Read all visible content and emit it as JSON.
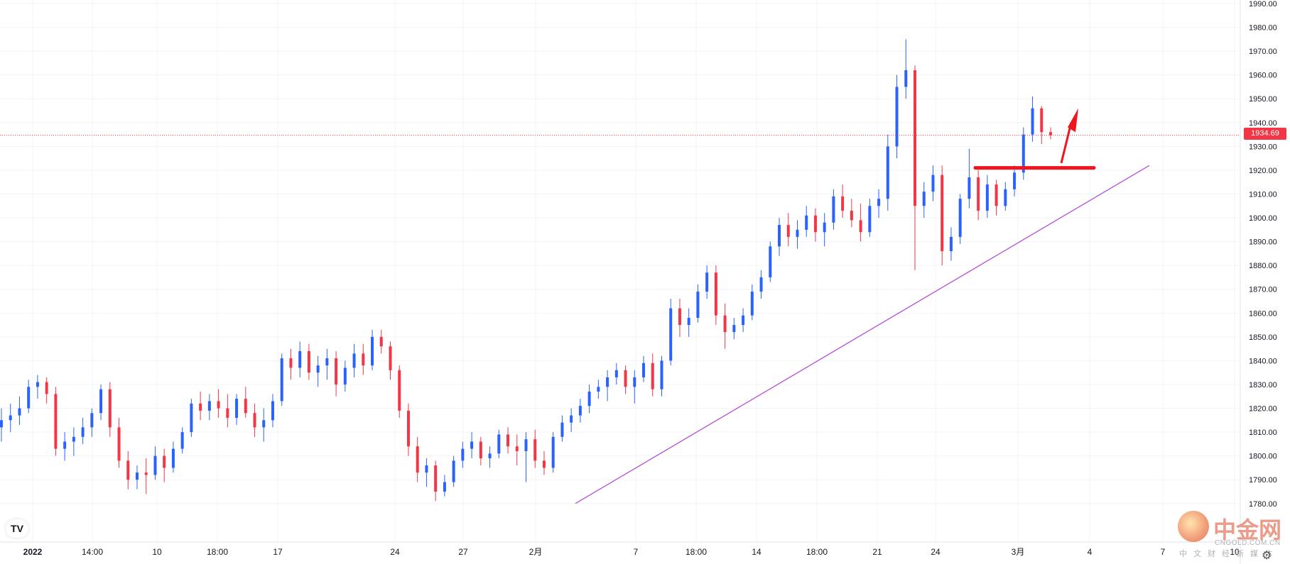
{
  "chart_data": {
    "type": "candlestick",
    "title": "",
    "price_axis": {
      "min": 1775,
      "max": 1990,
      "ticks": [
        1990,
        1980,
        1970,
        1960,
        1950,
        1940,
        1930,
        1920,
        1910,
        1900,
        1890,
        1880,
        1870,
        1860,
        1850,
        1840,
        1830,
        1820,
        1810,
        1800,
        1790,
        1780
      ],
      "tick_labels": [
        "1990.00",
        "1980.00",
        "1970.00",
        "1960.00",
        "1950.00",
        "1940.00",
        "1930.00",
        "1920.00",
        "1910.00",
        "1900.00",
        "1890.00",
        "1880.00",
        "1870.00",
        "1860.00",
        "1850.00",
        "1840.00",
        "1830.00",
        "1820.00",
        "1810.00",
        "1800.00",
        "1790.00",
        "1780.00"
      ],
      "side": "right"
    },
    "time_axis": {
      "labels": [
        "2022",
        "14:00",
        "10",
        "18:00",
        "17",
        "24",
        "27",
        "2月",
        "7",
        "18:00",
        "14",
        "18:00",
        "21",
        "24",
        "3月",
        "4",
        "7",
        "10"
      ]
    },
    "last_price": 1934.69,
    "last_price_label": "1934.69",
    "colors": {
      "up": "#2962ff",
      "down": "#f23645",
      "grid": "#f0f3fa",
      "trendline": "#b23fd6",
      "annotation": "#f0141c",
      "price_line": "#f23645"
    },
    "trendline": {
      "from": [
        1780,
        "2月"
      ],
      "to": [
        1922,
        "7"
      ],
      "label": ""
    },
    "resistance": {
      "price": 1921,
      "label": ""
    },
    "candles": [
      [
        1812,
        1820,
        1806,
        1815
      ],
      [
        1815,
        1822,
        1810,
        1817
      ],
      [
        1817,
        1825,
        1813,
        1820
      ],
      [
        1820,
        1832,
        1818,
        1829
      ],
      [
        1829,
        1834,
        1824,
        1831
      ],
      [
        1831,
        1833,
        1822,
        1826
      ],
      [
        1826,
        1829,
        1800,
        1803
      ],
      [
        1803,
        1810,
        1798,
        1806
      ],
      [
        1806,
        1812,
        1800,
        1808
      ],
      [
        1808,
        1816,
        1805,
        1812
      ],
      [
        1812,
        1820,
        1808,
        1818
      ],
      [
        1818,
        1830,
        1815,
        1828
      ],
      [
        1828,
        1831,
        1808,
        1812
      ],
      [
        1812,
        1816,
        1795,
        1798
      ],
      [
        1798,
        1802,
        1786,
        1790
      ],
      [
        1790,
        1796,
        1786,
        1793
      ],
      [
        1793,
        1799,
        1784,
        1792
      ],
      [
        1792,
        1804,
        1790,
        1800
      ],
      [
        1800,
        1803,
        1789,
        1795
      ],
      [
        1795,
        1806,
        1793,
        1803
      ],
      [
        1803,
        1812,
        1801,
        1810
      ],
      [
        1810,
        1824,
        1808,
        1822
      ],
      [
        1822,
        1827,
        1815,
        1819
      ],
      [
        1819,
        1826,
        1815,
        1823
      ],
      [
        1823,
        1828,
        1816,
        1820
      ],
      [
        1820,
        1826,
        1812,
        1816
      ],
      [
        1816,
        1826,
        1813,
        1824
      ],
      [
        1824,
        1829,
        1816,
        1818
      ],
      [
        1818,
        1822,
        1808,
        1812
      ],
      [
        1812,
        1820,
        1806,
        1815
      ],
      [
        1815,
        1826,
        1812,
        1823
      ],
      [
        1823,
        1843,
        1821,
        1841
      ],
      [
        1841,
        1845,
        1832,
        1837
      ],
      [
        1837,
        1848,
        1833,
        1844
      ],
      [
        1844,
        1847,
        1832,
        1835
      ],
      [
        1835,
        1842,
        1829,
        1838
      ],
      [
        1838,
        1845,
        1832,
        1841
      ],
      [
        1841,
        1844,
        1825,
        1830
      ],
      [
        1830,
        1840,
        1827,
        1837
      ],
      [
        1837,
        1847,
        1833,
        1843
      ],
      [
        1843,
        1847,
        1834,
        1838
      ],
      [
        1838,
        1853,
        1836,
        1850
      ],
      [
        1850,
        1853,
        1843,
        1846
      ],
      [
        1846,
        1848,
        1832,
        1836
      ],
      [
        1836,
        1838,
        1816,
        1819
      ],
      [
        1819,
        1822,
        1800,
        1804
      ],
      [
        1804,
        1808,
        1789,
        1793
      ],
      [
        1793,
        1799,
        1787,
        1796
      ],
      [
        1796,
        1798,
        1781,
        1785
      ],
      [
        1785,
        1792,
        1783,
        1789
      ],
      [
        1789,
        1800,
        1787,
        1798
      ],
      [
        1798,
        1806,
        1795,
        1803
      ],
      [
        1803,
        1810,
        1799,
        1806
      ],
      [
        1806,
        1808,
        1796,
        1799
      ],
      [
        1799,
        1804,
        1795,
        1801
      ],
      [
        1801,
        1811,
        1799,
        1809
      ],
      [
        1809,
        1812,
        1801,
        1804
      ],
      [
        1804,
        1809,
        1796,
        1802
      ],
      [
        1802,
        1810,
        1789,
        1807
      ],
      [
        1807,
        1811,
        1795,
        1798
      ],
      [
        1798,
        1802,
        1792,
        1795
      ],
      [
        1795,
        1810,
        1793,
        1808
      ],
      [
        1808,
        1817,
        1806,
        1814
      ],
      [
        1814,
        1820,
        1810,
        1817
      ],
      [
        1817,
        1824,
        1814,
        1821
      ],
      [
        1821,
        1830,
        1818,
        1827
      ],
      [
        1827,
        1832,
        1824,
        1829
      ],
      [
        1829,
        1836,
        1823,
        1833
      ],
      [
        1833,
        1839,
        1830,
        1836
      ],
      [
        1836,
        1838,
        1826,
        1829
      ],
      [
        1829,
        1836,
        1822,
        1833
      ],
      [
        1833,
        1842,
        1831,
        1839
      ],
      [
        1839,
        1843,
        1825,
        1828
      ],
      [
        1828,
        1842,
        1825,
        1840
      ],
      [
        1840,
        1866,
        1838,
        1862
      ],
      [
        1862,
        1866,
        1850,
        1855
      ],
      [
        1855,
        1862,
        1850,
        1858
      ],
      [
        1858,
        1872,
        1856,
        1869
      ],
      [
        1869,
        1880,
        1866,
        1877
      ],
      [
        1877,
        1880,
        1855,
        1859
      ],
      [
        1859,
        1864,
        1845,
        1852
      ],
      [
        1852,
        1858,
        1849,
        1855
      ],
      [
        1855,
        1862,
        1852,
        1859
      ],
      [
        1859,
        1872,
        1857,
        1869
      ],
      [
        1869,
        1878,
        1866,
        1875
      ],
      [
        1875,
        1890,
        1873,
        1888
      ],
      [
        1888,
        1900,
        1884,
        1897
      ],
      [
        1897,
        1902,
        1888,
        1892
      ],
      [
        1892,
        1899,
        1887,
        1895
      ],
      [
        1895,
        1905,
        1892,
        1901
      ],
      [
        1901,
        1904,
        1890,
        1894
      ],
      [
        1894,
        1902,
        1888,
        1898
      ],
      [
        1898,
        1912,
        1895,
        1909
      ],
      [
        1909,
        1914,
        1900,
        1903
      ],
      [
        1903,
        1908,
        1896,
        1899
      ],
      [
        1899,
        1906,
        1890,
        1894
      ],
      [
        1894,
        1908,
        1892,
        1905
      ],
      [
        1905,
        1912,
        1900,
        1908
      ],
      [
        1908,
        1935,
        1903,
        1930
      ],
      [
        1930,
        1960,
        1925,
        1955
      ],
      [
        1955,
        1975,
        1950,
        1962
      ],
      [
        1962,
        1964,
        1878,
        1905
      ],
      [
        1905,
        1915,
        1900,
        1911
      ],
      [
        1911,
        1922,
        1907,
        1918
      ],
      [
        1918,
        1922,
        1880,
        1886
      ],
      [
        1886,
        1896,
        1882,
        1892
      ],
      [
        1892,
        1910,
        1889,
        1908
      ],
      [
        1908,
        1929,
        1904,
        1917
      ],
      [
        1917,
        1920,
        1899,
        1903
      ],
      [
        1903,
        1918,
        1900,
        1914
      ],
      [
        1914,
        1916,
        1901,
        1905
      ],
      [
        1905,
        1915,
        1903,
        1912
      ],
      [
        1912,
        1922,
        1909,
        1919
      ],
      [
        1919,
        1938,
        1916,
        1935
      ],
      [
        1935,
        1951,
        1932,
        1946
      ],
      [
        1946,
        1947,
        1931,
        1936
      ],
      [
        1936,
        1938,
        1933,
        1934.69
      ]
    ]
  },
  "icons": {
    "tv_logo": "TV",
    "settings": "gear-icon"
  },
  "watermark": {
    "title": "中金网",
    "domain": "CNGOLD.COM.CN",
    "tagline": "中文财经新媒体"
  }
}
